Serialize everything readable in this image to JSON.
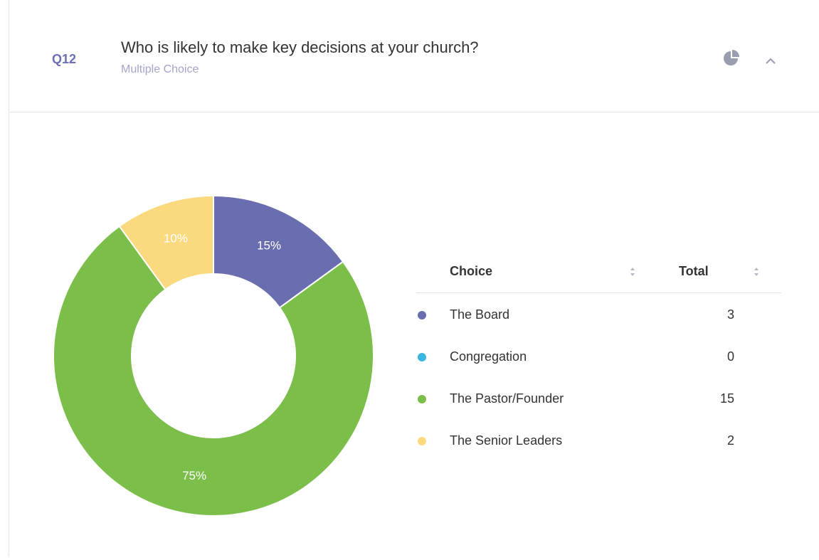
{
  "header": {
    "question_id": "Q12",
    "title": "Who is likely to make key decisions at your church?",
    "subtitle": "Multiple Choice"
  },
  "chart_data": {
    "type": "pie",
    "categories": [
      "The Board",
      "Congregation",
      "The Pastor/Founder",
      "The Senior Leaders"
    ],
    "values": [
      15,
      0,
      75,
      10
    ],
    "colors": [
      "#6a6db0",
      "#3bb6e0",
      "#7bbf4a",
      "#fbd97f"
    ]
  },
  "table": {
    "headers": [
      "Choice",
      "Total"
    ],
    "rows": [
      [
        "The Board",
        3
      ],
      [
        "Congregation",
        0
      ],
      [
        "The Pastor/Founder",
        15
      ],
      [
        "The Senior Leaders",
        2
      ]
    ]
  }
}
